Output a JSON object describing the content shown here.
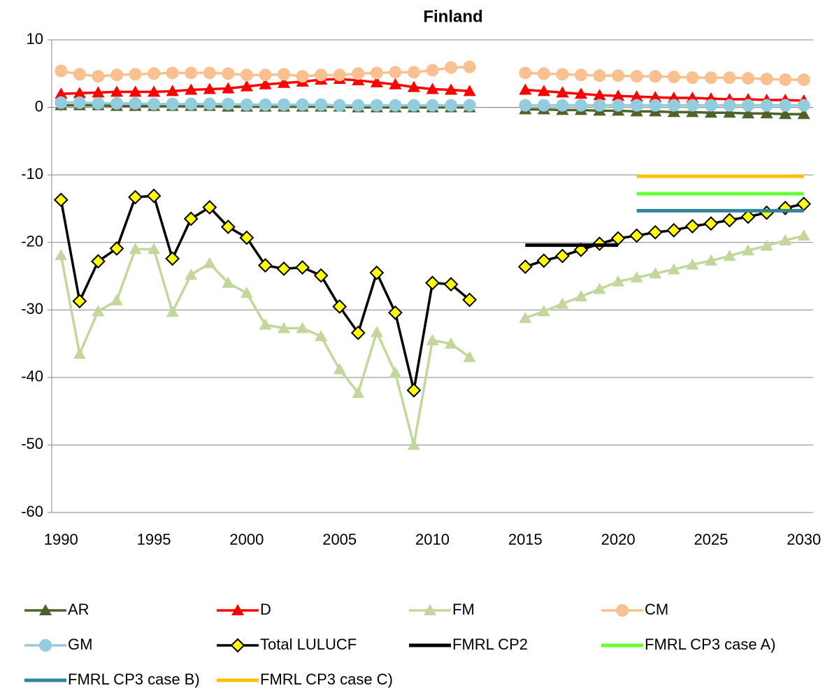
{
  "chart_data": {
    "type": "line",
    "title": "Finland",
    "x": [
      1990,
      1991,
      1992,
      1993,
      1994,
      1995,
      1996,
      1997,
      1998,
      1999,
      2000,
      2001,
      2002,
      2003,
      2004,
      2005,
      2006,
      2007,
      2008,
      2009,
      2010,
      2011,
      2012,
      2013,
      2014,
      2015,
      2016,
      2017,
      2018,
      2019,
      2020,
      2021,
      2022,
      2023,
      2024,
      2025,
      2026,
      2027,
      2028,
      2029,
      2030
    ],
    "xlim": [
      1989.5,
      2030.5
    ],
    "xticks": [
      1990,
      1995,
      2000,
      2005,
      2010,
      2015,
      2020,
      2025,
      2030
    ],
    "ylim": [
      -60,
      10
    ],
    "yticks": [
      -60,
      -50,
      -40,
      -30,
      -20,
      -10,
      0,
      10
    ],
    "grid": true,
    "series": [
      {
        "name": "AR",
        "color": "#4f6228",
        "marker": "triangle",
        "values": [
          0.3,
          0.3,
          0.3,
          0.2,
          0.2,
          0.2,
          0.2,
          0.2,
          0.2,
          0.1,
          0.1,
          0.1,
          0.1,
          0.1,
          0.1,
          0.1,
          0.0,
          0.0,
          0.0,
          0.0,
          0.0,
          0.0,
          0.0,
          null,
          null,
          -0.3,
          -0.3,
          -0.4,
          -0.4,
          -0.5,
          -0.5,
          -0.6,
          -0.6,
          -0.7,
          -0.7,
          -0.8,
          -0.8,
          -0.9,
          -0.9,
          -1.0,
          -1.0
        ]
      },
      {
        "name": "D",
        "color": "#ff0000",
        "marker": "triangle",
        "values": [
          2.0,
          2.1,
          2.2,
          2.3,
          2.3,
          2.3,
          2.4,
          2.6,
          2.7,
          2.8,
          3.1,
          3.4,
          3.6,
          3.8,
          4.1,
          4.2,
          4.0,
          3.7,
          3.4,
          3.0,
          2.7,
          2.6,
          2.4,
          null,
          null,
          2.6,
          2.4,
          2.2,
          2.0,
          1.8,
          1.7,
          1.6,
          1.5,
          1.4,
          1.4,
          1.3,
          1.2,
          1.2,
          1.1,
          1.1,
          1.0
        ]
      },
      {
        "name": "FM",
        "color": "#c3d69b",
        "marker": "triangle",
        "values": [
          -21.9,
          -36.5,
          -30.2,
          -28.6,
          -21.0,
          -21.0,
          -30.3,
          -24.8,
          -23.1,
          -26.0,
          -27.5,
          -32.2,
          -32.7,
          -32.7,
          -33.9,
          -38.8,
          -42.3,
          -33.3,
          -39.3,
          -50.0,
          -34.5,
          -35.0,
          -37.0,
          null,
          null,
          -31.2,
          -30.2,
          -29.1,
          -28.0,
          -26.9,
          -25.8,
          -25.2,
          -24.6,
          -24.0,
          -23.3,
          -22.7,
          -22.0,
          -21.2,
          -20.5,
          -19.7,
          -19.0
        ]
      },
      {
        "name": "CM",
        "color": "#fac090",
        "marker": "circle",
        "values": [
          5.4,
          4.9,
          4.6,
          4.8,
          4.9,
          5.0,
          5.1,
          5.1,
          5.1,
          5.0,
          4.8,
          4.8,
          4.9,
          4.6,
          4.8,
          4.8,
          5.0,
          5.1,
          5.2,
          5.2,
          5.5,
          5.9,
          6.0,
          null,
          null,
          5.1,
          5.0,
          4.9,
          4.8,
          4.7,
          4.7,
          4.6,
          4.6,
          4.5,
          4.4,
          4.4,
          4.4,
          4.3,
          4.2,
          4.1,
          4.1
        ]
      },
      {
        "name": "GM",
        "color": "#93cddd",
        "marker": "circle",
        "values": [
          0.7,
          0.7,
          0.6,
          0.6,
          0.6,
          0.5,
          0.5,
          0.5,
          0.5,
          0.5,
          0.4,
          0.4,
          0.4,
          0.4,
          0.4,
          0.3,
          0.3,
          0.3,
          0.3,
          0.3,
          0.3,
          0.3,
          0.3,
          null,
          null,
          0.3,
          0.3,
          0.3,
          0.3,
          0.3,
          0.3,
          0.3,
          0.3,
          0.3,
          0.3,
          0.3,
          0.3,
          0.3,
          0.3,
          0.3,
          0.3
        ]
      },
      {
        "name": "Total LULUCF",
        "color": "#000000",
        "marker": "diamond",
        "marker_fill": "#ffff00",
        "values": [
          -13.7,
          -28.7,
          -22.8,
          -20.9,
          -13.3,
          -13.1,
          -22.4,
          -16.5,
          -14.8,
          -17.7,
          -19.3,
          -23.4,
          -23.9,
          -23.7,
          -24.9,
          -29.5,
          -33.4,
          -24.5,
          -30.4,
          -41.9,
          -26.0,
          -26.2,
          -28.5,
          null,
          null,
          -23.6,
          -22.7,
          -22.0,
          -21.1,
          -20.2,
          -19.4,
          -19.0,
          -18.5,
          -18.2,
          -17.6,
          -17.2,
          -16.7,
          -16.2,
          -15.6,
          -14.9,
          -14.3
        ]
      },
      {
        "name": "FMRL CP2",
        "color": "#000000",
        "marker": "none",
        "values": [
          null,
          null,
          null,
          null,
          null,
          null,
          null,
          null,
          null,
          null,
          null,
          null,
          null,
          null,
          null,
          null,
          null,
          null,
          null,
          null,
          null,
          null,
          null,
          null,
          null,
          -20.4,
          -20.4,
          -20.4,
          -20.4,
          -20.4,
          -20.4,
          null,
          null,
          null,
          null,
          null,
          null,
          null,
          null,
          null,
          null
        ]
      },
      {
        "name": "FMRL CP3 case A)",
        "color": "#66ff33",
        "marker": "none",
        "values": [
          null,
          null,
          null,
          null,
          null,
          null,
          null,
          null,
          null,
          null,
          null,
          null,
          null,
          null,
          null,
          null,
          null,
          null,
          null,
          null,
          null,
          null,
          null,
          null,
          null,
          null,
          null,
          null,
          null,
          null,
          null,
          -12.8,
          -12.8,
          -12.8,
          -12.8,
          -12.8,
          -12.8,
          -12.8,
          -12.8,
          -12.8,
          -12.8
        ]
      },
      {
        "name": "FMRL CP3 case B)",
        "color": "#31849b",
        "marker": "none",
        "values": [
          null,
          null,
          null,
          null,
          null,
          null,
          null,
          null,
          null,
          null,
          null,
          null,
          null,
          null,
          null,
          null,
          null,
          null,
          null,
          null,
          null,
          null,
          null,
          null,
          null,
          null,
          null,
          null,
          null,
          null,
          null,
          -15.3,
          -15.3,
          -15.3,
          -15.3,
          -15.3,
          -15.3,
          -15.3,
          -15.3,
          -15.3,
          -15.3
        ]
      },
      {
        "name": "FMRL CP3 case C)",
        "color": "#ffc000",
        "marker": "none",
        "values": [
          null,
          null,
          null,
          null,
          null,
          null,
          null,
          null,
          null,
          null,
          null,
          null,
          null,
          null,
          null,
          null,
          null,
          null,
          null,
          null,
          null,
          null,
          null,
          null,
          null,
          null,
          null,
          null,
          null,
          null,
          null,
          -10.2,
          -10.2,
          -10.2,
          -10.2,
          -10.2,
          -10.2,
          -10.2,
          -10.2,
          -10.2,
          -10.2
        ]
      }
    ]
  }
}
